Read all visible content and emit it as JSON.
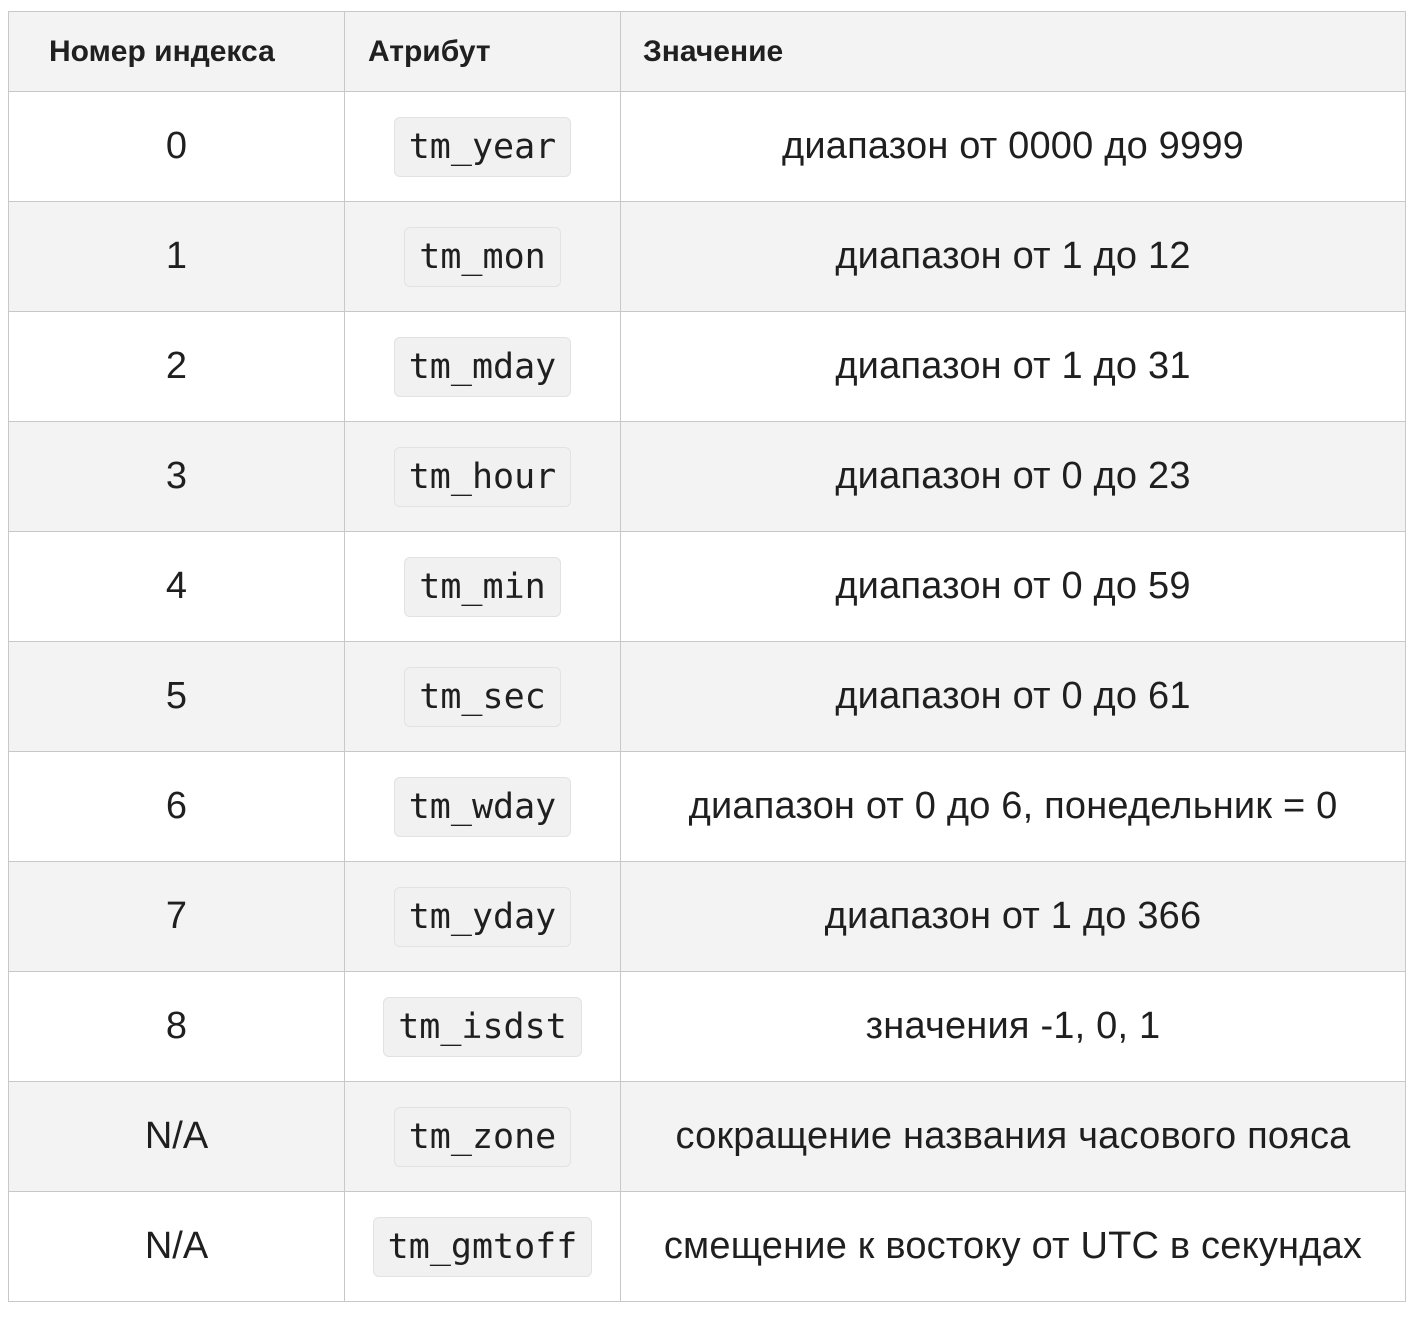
{
  "table": {
    "headers": {
      "index": "Номер индекса",
      "attribute": "Атрибут",
      "value": "Значение"
    },
    "rows": [
      {
        "index": "0",
        "attribute": "tm_year",
        "value": "диапазон от 0000 до 9999"
      },
      {
        "index": "1",
        "attribute": "tm_mon",
        "value": "диапазон от 1 до 12"
      },
      {
        "index": "2",
        "attribute": "tm_mday",
        "value": "диапазон от 1 до 31"
      },
      {
        "index": "3",
        "attribute": "tm_hour",
        "value": "диапазон от 0 до 23"
      },
      {
        "index": "4",
        "attribute": "tm_min",
        "value": "диапазон от 0 до 59"
      },
      {
        "index": "5",
        "attribute": "tm_sec",
        "value": "диапазон от 0 до 61"
      },
      {
        "index": "6",
        "attribute": "tm_wday",
        "value": "диапазон от 0 до 6, понедельник = 0"
      },
      {
        "index": "7",
        "attribute": "tm_yday",
        "value": "диапазон от 1 до 366"
      },
      {
        "index": "8",
        "attribute": "tm_isdst",
        "value": "значения -1, 0, 1"
      },
      {
        "index": "N/A",
        "attribute": "tm_zone",
        "value": "сокращение названия часового пояса"
      },
      {
        "index": "N/A",
        "attribute": "tm_gmtoff",
        "value": "смещение к востоку от UTC в секундах"
      }
    ]
  }
}
